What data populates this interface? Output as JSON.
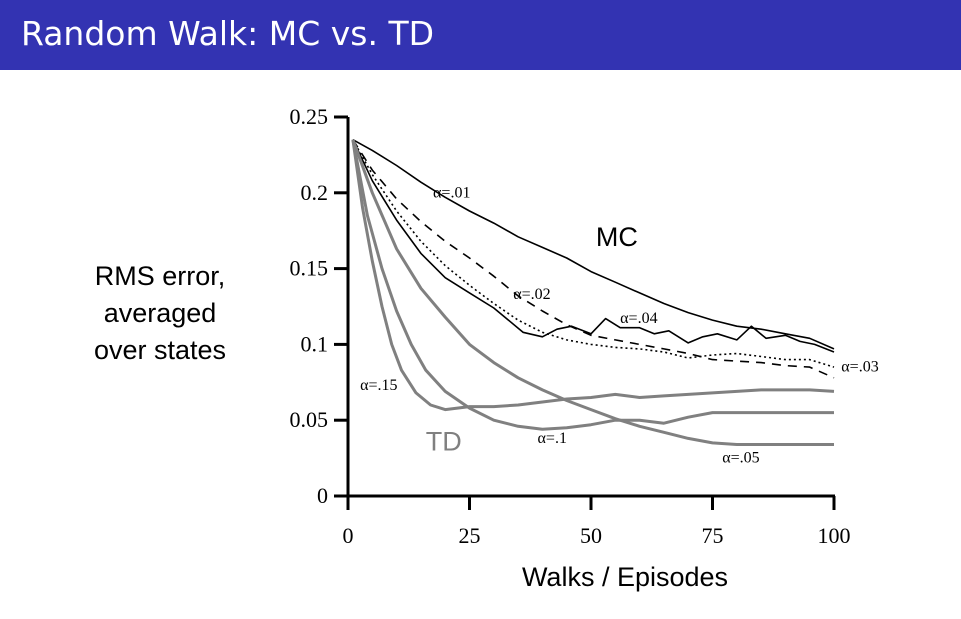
{
  "slide": {
    "title": "Random Walk: MC vs. TD"
  },
  "chart_data": {
    "type": "line",
    "title": "",
    "xlabel": "Walks / Episodes",
    "ylabel_lines": [
      "RMS error,",
      "averaged",
      "over states"
    ],
    "xlim": [
      0,
      100
    ],
    "ylim": [
      0,
      0.25
    ],
    "xticks": [
      0,
      25,
      50,
      75,
      100
    ],
    "xtick_labels": [
      "0",
      "25",
      "50",
      "75",
      "100"
    ],
    "yticks": [
      0,
      0.05,
      0.1,
      0.15,
      0.2,
      0.25
    ],
    "ytick_labels": [
      "0",
      "0.05",
      "0.1",
      "0.15",
      "0.2",
      "0.25"
    ],
    "grid": false,
    "group_labels": [
      {
        "text": "MC",
        "x": 51,
        "y": 0.165,
        "color": "#000000"
      },
      {
        "text": "TD",
        "x": 16,
        "y": 0.03,
        "color": "#808080"
      }
    ],
    "series": [
      {
        "name": "MC α=.01",
        "group": "MC",
        "label": "α=.01",
        "color": "#000000",
        "style": "solid",
        "label_pos": {
          "x": 17.5,
          "y": 0.197
        },
        "x": [
          1,
          5,
          10,
          15,
          20,
          25,
          30,
          35,
          40,
          45,
          50,
          55,
          60,
          65,
          70,
          75,
          80,
          85,
          90,
          95,
          100
        ],
        "y": [
          0.235,
          0.228,
          0.218,
          0.207,
          0.197,
          0.188,
          0.18,
          0.171,
          0.164,
          0.157,
          0.148,
          0.141,
          0.134,
          0.127,
          0.121,
          0.116,
          0.112,
          0.11,
          0.107,
          0.104,
          0.097
        ]
      },
      {
        "name": "MC α=.02",
        "group": "MC",
        "label": "α=.02",
        "color": "#000000",
        "style": "dashed",
        "label_pos": {
          "x": 34,
          "y": 0.13
        },
        "x": [
          1,
          5,
          10,
          15,
          20,
          25,
          30,
          35,
          40,
          45,
          50,
          55,
          60,
          65,
          70,
          75,
          80,
          85,
          90,
          95,
          100
        ],
        "y": [
          0.235,
          0.215,
          0.196,
          0.181,
          0.168,
          0.157,
          0.145,
          0.132,
          0.122,
          0.113,
          0.106,
          0.103,
          0.1,
          0.097,
          0.094,
          0.09,
          0.089,
          0.088,
          0.086,
          0.085,
          0.078
        ]
      },
      {
        "name": "MC α=.03",
        "group": "MC",
        "label": "α=.03",
        "color": "#000000",
        "style": "dotted",
        "label_pos": {
          "x": 101.5,
          "y": 0.082
        },
        "x": [
          1,
          5,
          10,
          15,
          20,
          25,
          30,
          35,
          40,
          45,
          50,
          55,
          60,
          65,
          70,
          75,
          80,
          85,
          90,
          95,
          100
        ],
        "y": [
          0.235,
          0.212,
          0.188,
          0.168,
          0.152,
          0.139,
          0.127,
          0.116,
          0.108,
          0.103,
          0.1,
          0.098,
          0.097,
          0.095,
          0.091,
          0.093,
          0.094,
          0.092,
          0.09,
          0.09,
          0.085
        ]
      },
      {
        "name": "MC α=.04",
        "group": "MC",
        "label": "α=.04",
        "color": "#000000",
        "style": "solid",
        "label_pos": {
          "x": 56,
          "y": 0.114
        },
        "x": [
          1,
          5,
          10,
          15,
          20,
          25,
          30,
          33,
          36,
          40,
          43,
          46,
          50,
          53,
          56,
          60,
          63,
          66,
          70,
          73,
          76,
          80,
          83,
          86,
          90,
          93,
          96,
          100
        ],
        "y": [
          0.235,
          0.208,
          0.182,
          0.16,
          0.144,
          0.134,
          0.124,
          0.116,
          0.108,
          0.105,
          0.11,
          0.112,
          0.107,
          0.117,
          0.111,
          0.111,
          0.107,
          0.109,
          0.101,
          0.105,
          0.107,
          0.103,
          0.112,
          0.104,
          0.106,
          0.102,
          0.1,
          0.095
        ]
      },
      {
        "name": "TD α=.05",
        "group": "TD",
        "label": "α=.05",
        "color": "#808080",
        "style": "solid",
        "label_pos": {
          "x": 77,
          "y": 0.022
        },
        "x": [
          1,
          5,
          10,
          15,
          20,
          25,
          30,
          35,
          40,
          45,
          50,
          55,
          60,
          65,
          70,
          75,
          80,
          85,
          90,
          95,
          100
        ],
        "y": [
          0.235,
          0.2,
          0.163,
          0.137,
          0.118,
          0.1,
          0.088,
          0.078,
          0.07,
          0.063,
          0.057,
          0.051,
          0.046,
          0.042,
          0.038,
          0.035,
          0.034,
          0.034,
          0.034,
          0.034,
          0.034
        ]
      },
      {
        "name": "TD α=.1",
        "group": "TD",
        "label": "α=.1",
        "color": "#808080",
        "style": "solid",
        "label_pos": {
          "x": 39,
          "y": 0.035
        },
        "x": [
          1,
          4,
          7,
          10,
          13,
          16,
          20,
          25,
          30,
          35,
          40,
          45,
          50,
          55,
          60,
          65,
          70,
          75,
          80,
          85,
          90,
          95,
          100
        ],
        "y": [
          0.235,
          0.185,
          0.15,
          0.122,
          0.1,
          0.083,
          0.069,
          0.058,
          0.05,
          0.046,
          0.044,
          0.045,
          0.047,
          0.05,
          0.05,
          0.048,
          0.052,
          0.055,
          0.055,
          0.055,
          0.055,
          0.055,
          0.055
        ]
      },
      {
        "name": "TD α=.15",
        "group": "TD",
        "label": "α=.15",
        "color": "#808080",
        "style": "solid",
        "label_pos": {
          "x": 2.5,
          "y": 0.07
        },
        "x": [
          1,
          3,
          5,
          7,
          9,
          11,
          14,
          17,
          20,
          25,
          30,
          35,
          40,
          45,
          50,
          55,
          60,
          65,
          70,
          75,
          80,
          85,
          90,
          95,
          100
        ],
        "y": [
          0.235,
          0.19,
          0.155,
          0.125,
          0.1,
          0.083,
          0.068,
          0.06,
          0.057,
          0.059,
          0.059,
          0.06,
          0.062,
          0.064,
          0.065,
          0.067,
          0.065,
          0.066,
          0.067,
          0.068,
          0.069,
          0.07,
          0.07,
          0.07,
          0.069
        ]
      }
    ]
  }
}
